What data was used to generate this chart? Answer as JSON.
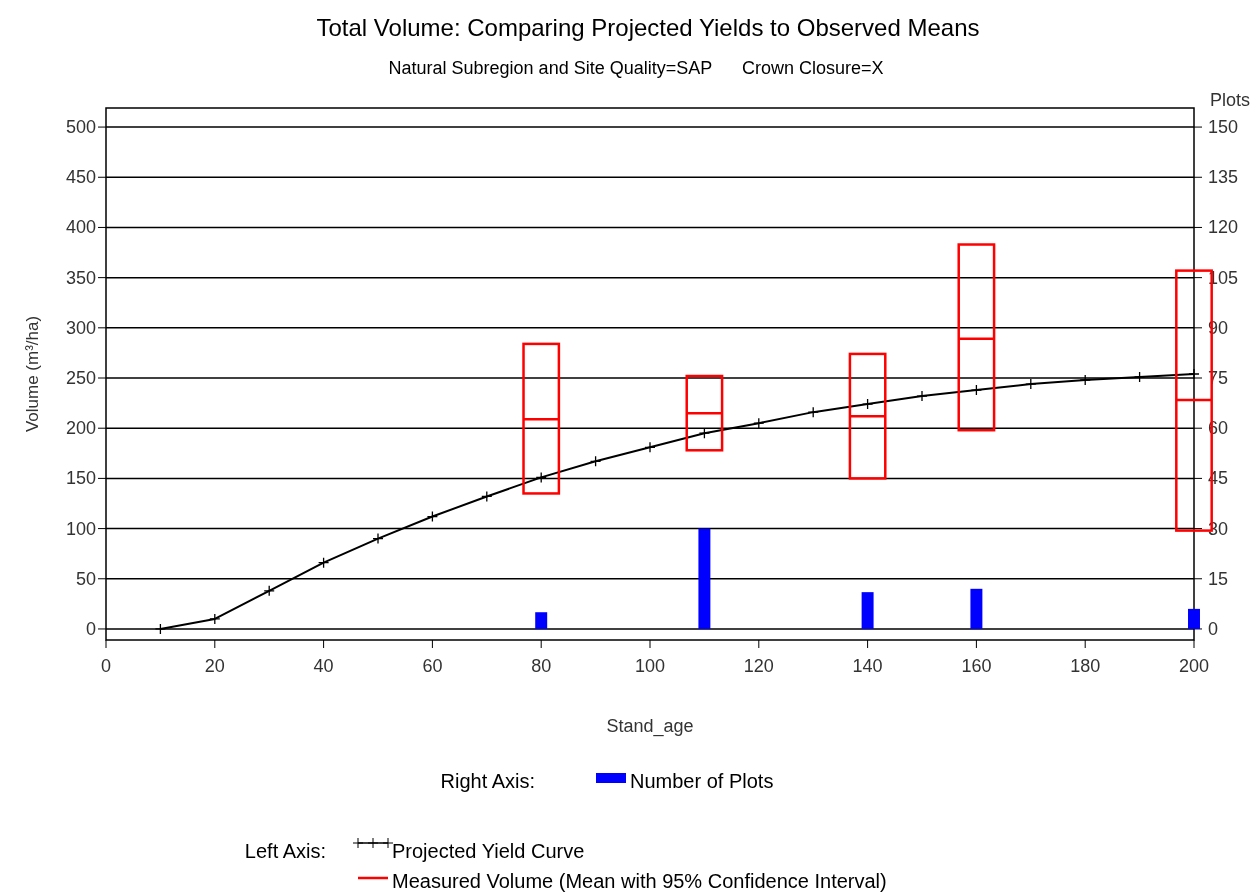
{
  "chart_data": {
    "type": "line",
    "title": "Total Volume: Comparing Projected Yields to Observed Means",
    "subtitle": "Natural Subregion and Site Quality=SAP      Crown Closure=X",
    "xlabel": "Stand_age",
    "ylabel": "Volume (m³/ha)",
    "y2label": "Plots",
    "xlim": [
      0,
      200
    ],
    "xticks": [
      0,
      20,
      40,
      60,
      80,
      100,
      120,
      140,
      160,
      180,
      200
    ],
    "ylim": [
      -11,
      519
    ],
    "yticks": [
      0,
      50,
      100,
      150,
      200,
      250,
      300,
      350,
      400,
      450,
      500
    ],
    "y2lim": [
      -3.3,
      155.7
    ],
    "y2ticks": [
      0,
      15,
      30,
      45,
      60,
      75,
      90,
      105,
      120,
      135,
      150
    ],
    "grid": "y",
    "legend": "bottom",
    "annotations": [
      "Right Axis:",
      "Left Axis:"
    ],
    "series": [
      {
        "name": "Number of Plots",
        "type": "bar",
        "axis": "y2",
        "color": "#0000ff",
        "x": [
          80,
          110,
          140,
          160,
          200
        ],
        "values": [
          5,
          30,
          11,
          12,
          6
        ]
      },
      {
        "name": "Projected Yield Curve",
        "color": "#000000",
        "marker": "cross",
        "x": [
          10,
          20,
          30,
          40,
          50,
          60,
          70,
          80,
          90,
          100,
          110,
          120,
          130,
          140,
          150,
          160,
          170,
          180,
          190,
          200
        ],
        "values": [
          0,
          10,
          38,
          66,
          90,
          112,
          132,
          151,
          167,
          181,
          195,
          205,
          216,
          224,
          232,
          238,
          244,
          248,
          251,
          254
        ]
      },
      {
        "name": "Measured Volume (Mean with 95% Confidence Interval)",
        "type": "box",
        "color": "#ff0000",
        "x": [
          80,
          110,
          140,
          160,
          200
        ],
        "boxes": [
          {
            "low": 135,
            "q1": 135,
            "median": 209,
            "q3": 284,
            "high": 284
          },
          {
            "low": 178,
            "q1": 178,
            "median": 215,
            "q3": 252,
            "high": 252
          },
          {
            "low": 150,
            "q1": 150,
            "median": 212,
            "q3": 274,
            "high": 274
          },
          {
            "low": 198,
            "q1": 198,
            "median": 289,
            "q3": 383,
            "high": 383
          },
          {
            "low": 98,
            "q1": 98,
            "median": 228,
            "q3": 357,
            "high": 357
          }
        ]
      }
    ]
  }
}
